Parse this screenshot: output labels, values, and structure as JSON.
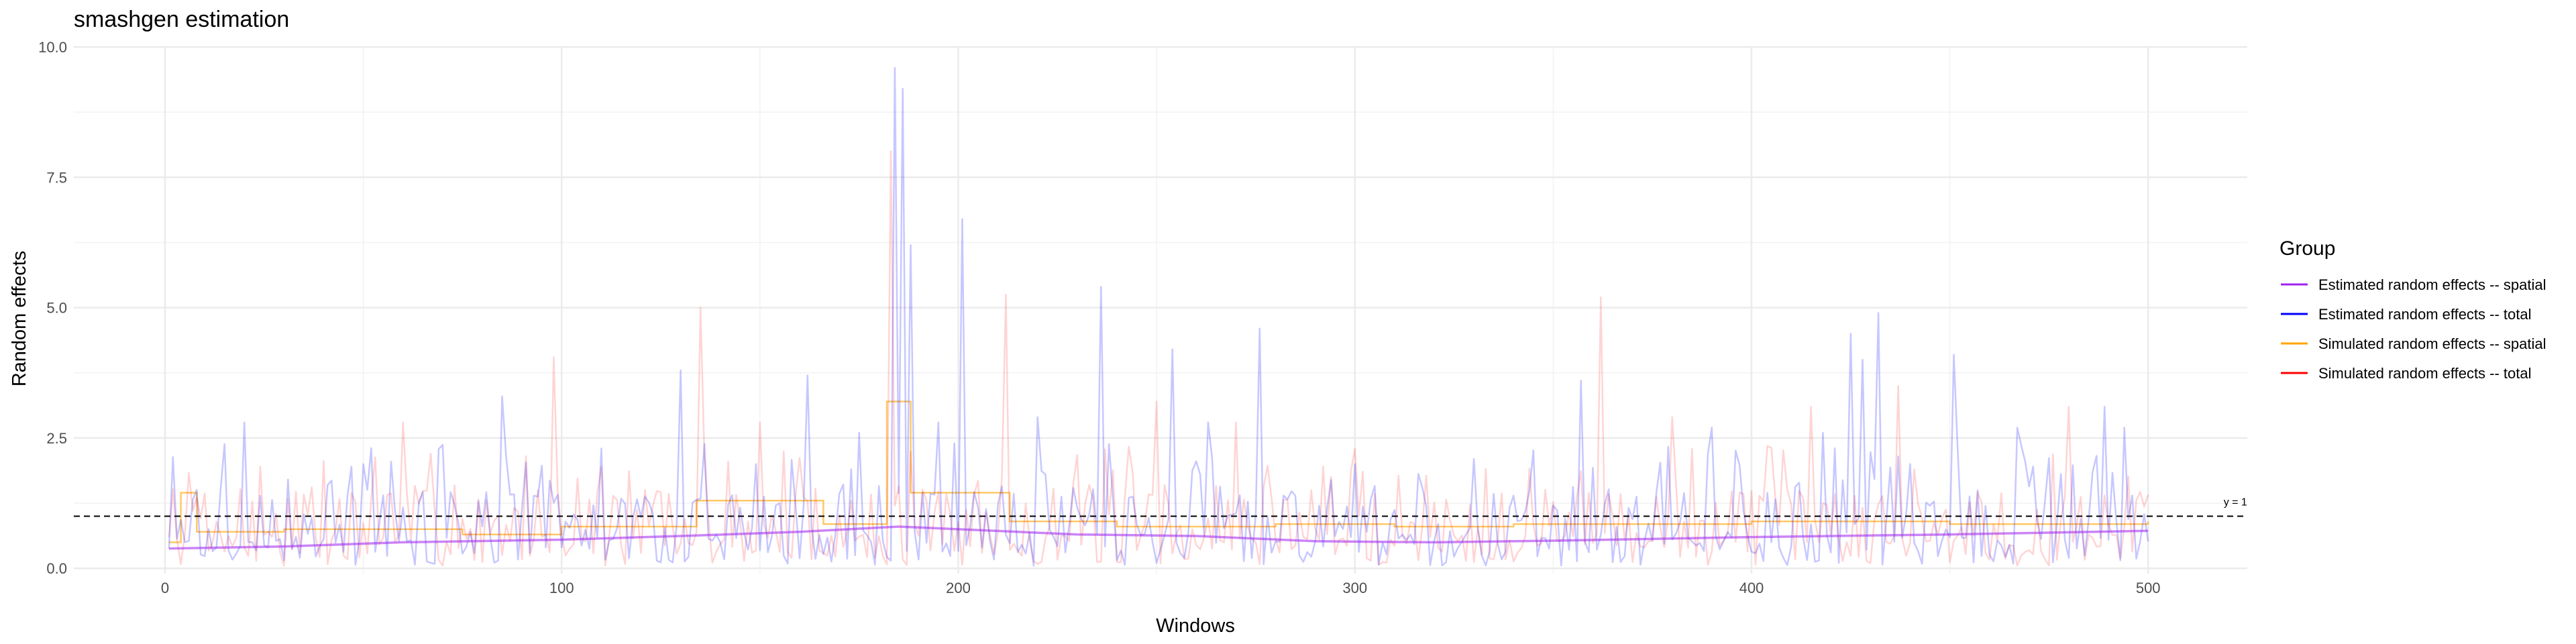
{
  "chart_data": {
    "type": "line",
    "title": "smashgen estimation",
    "xlabel": "Windows",
    "ylabel": "Random effects",
    "xlim": [
      -23,
      525
    ],
    "ylim": [
      -0.1,
      10
    ],
    "x_ticks": [
      0,
      100,
      200,
      300,
      400,
      500
    ],
    "y_ticks": [
      0.0,
      2.5,
      5.0,
      7.5,
      10.0
    ],
    "y_tick_labels": [
      "0.0",
      "2.5",
      "5.0",
      "7.5",
      "10.0"
    ],
    "x_tick_labels": [
      "0",
      "100",
      "200",
      "300",
      "400",
      "500"
    ],
    "grid": true,
    "legend": {
      "title": "Group",
      "placement": "right",
      "entries": [
        {
          "name": "Estimated random effects -- spatial",
          "color": "#a020f0"
        },
        {
          "name": "Estimated random effects -- total",
          "color": "#0000ff"
        },
        {
          "name": "Simulated random effects -- spatial",
          "color": "#ffa500"
        },
        {
          "name": "Simulated random effects -- total",
          "color": "#ff0000"
        }
      ]
    },
    "reference_line": {
      "y": 1,
      "label": "y = 1",
      "style": "dashed",
      "color": "#000000"
    },
    "series": [
      {
        "name": "Simulated random effects -- spatial",
        "color": "#ffa500",
        "opacity": 0.6,
        "steps": [
          [
            1,
            0.5
          ],
          [
            4,
            1.45
          ],
          [
            8,
            0.7
          ],
          [
            30,
            0.75
          ],
          [
            75,
            0.65
          ],
          [
            100,
            0.8
          ],
          [
            134,
            1.3
          ],
          [
            166,
            0.85
          ],
          [
            182,
            3.2
          ],
          [
            188,
            1.45
          ],
          [
            213,
            0.9
          ],
          [
            240,
            0.8
          ],
          [
            280,
            0.85
          ],
          [
            310,
            0.8
          ],
          [
            340,
            0.85
          ],
          [
            400,
            0.9
          ],
          [
            450,
            0.85
          ],
          [
            500,
            0.9
          ]
        ]
      },
      {
        "name": "Simulated random effects -- total",
        "color": "#ff0000",
        "opacity": 0.17,
        "seed": 7,
        "peaks": [
          [
            60,
            2.8
          ],
          [
            98,
            4.05
          ],
          [
            135,
            5.0
          ],
          [
            150,
            2.8
          ],
          [
            183,
            8.0
          ],
          [
            212,
            5.25
          ],
          [
            250,
            3.2
          ],
          [
            270,
            2.8
          ],
          [
            362,
            5.2
          ],
          [
            380,
            2.9
          ],
          [
            415,
            3.1
          ],
          [
            437,
            3.5
          ],
          [
            480,
            3.1
          ]
        ]
      },
      {
        "name": "Estimated random effects -- total",
        "color": "#0000ff",
        "opacity": 0.22,
        "seed": 3,
        "peaks": [
          [
            20,
            2.8
          ],
          [
            41,
            1.6
          ],
          [
            50,
            2.0
          ],
          [
            85,
            3.3
          ],
          [
            110,
            2.3
          ],
          [
            130,
            3.8
          ],
          [
            149,
            2.0
          ],
          [
            162,
            3.7
          ],
          [
            175,
            2.6
          ],
          [
            184,
            9.6
          ],
          [
            186,
            9.2
          ],
          [
            188,
            6.2
          ],
          [
            195,
            2.8
          ],
          [
            201,
            6.7
          ],
          [
            220,
            2.9
          ],
          [
            236,
            5.4
          ],
          [
            254,
            4.2
          ],
          [
            263,
            2.8
          ],
          [
            276,
            4.6
          ],
          [
            300,
            2.0
          ],
          [
            330,
            2.1
          ],
          [
            357,
            3.6
          ],
          [
            390,
            2.7
          ],
          [
            418,
            2.6
          ],
          [
            425,
            4.5
          ],
          [
            428,
            4.0
          ],
          [
            432,
            4.9
          ],
          [
            440,
            2.0
          ],
          [
            451,
            4.1
          ],
          [
            467,
            2.7
          ],
          [
            489,
            3.1
          ],
          [
            494,
            2.7
          ]
        ]
      },
      {
        "name": "Estimated random effects -- spatial",
        "color": "#a020f0",
        "opacity": 0.55,
        "points": [
          [
            1,
            0.38
          ],
          [
            30,
            0.42
          ],
          [
            60,
            0.5
          ],
          [
            100,
            0.55
          ],
          [
            130,
            0.62
          ],
          [
            160,
            0.7
          ],
          [
            185,
            0.8
          ],
          [
            200,
            0.75
          ],
          [
            230,
            0.65
          ],
          [
            260,
            0.62
          ],
          [
            290,
            0.52
          ],
          [
            320,
            0.5
          ],
          [
            350,
            0.53
          ],
          [
            400,
            0.6
          ],
          [
            450,
            0.65
          ],
          [
            500,
            0.72
          ]
        ]
      }
    ]
  }
}
